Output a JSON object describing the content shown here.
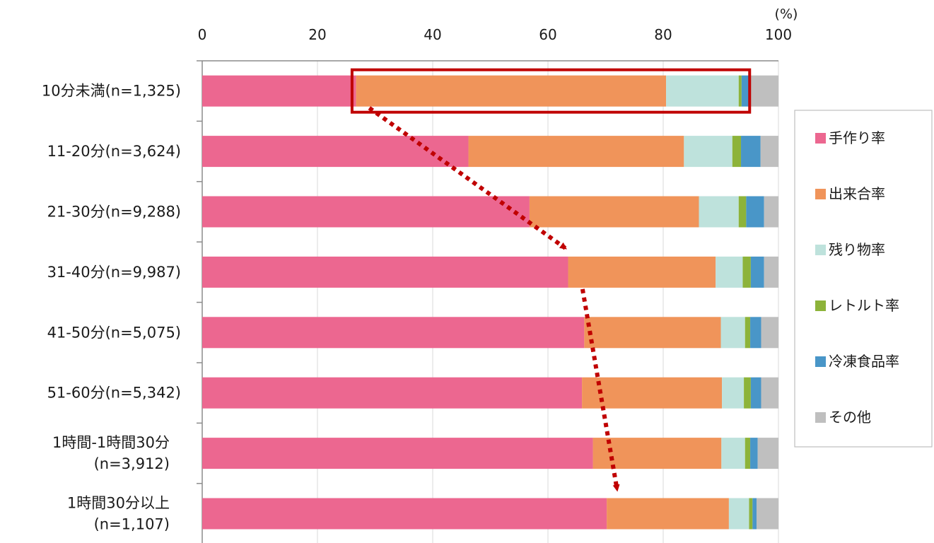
{
  "chart_data": {
    "type": "bar",
    "orientation": "horizontal",
    "stacked": true,
    "unit_label": "(%)",
    "xlim": [
      0,
      100
    ],
    "x_ticks": [
      0,
      20,
      40,
      60,
      80,
      100
    ],
    "grid": "vertical",
    "legend_position": "right",
    "categories": [
      "10分未満(n=1,325)",
      "11-20分(n=3,624)",
      "21-30分(n=9,288)",
      "31-40分(n=9,987)",
      "41-50分(n=5,075)",
      "51-60分(n=5,342)",
      "1時間-1時間30分\n(n=3,912)",
      "1時間30分以上\n(n=1,107)"
    ],
    "series": [
      {
        "name": "手作り率",
        "color": "#EC6790",
        "values": [
          26.7,
          46.2,
          56.8,
          63.5,
          66.3,
          65.9,
          67.8,
          70.2
        ]
      },
      {
        "name": "出来合率",
        "color": "#F0945A",
        "values": [
          53.8,
          37.4,
          29.4,
          25.6,
          23.7,
          24.3,
          22.3,
          21.2
        ]
      },
      {
        "name": "残り物率",
        "color": "#BEE2DC",
        "values": [
          12.6,
          8.4,
          6.9,
          4.7,
          4.2,
          3.8,
          4.1,
          3.5
        ]
      },
      {
        "name": "レトルト率",
        "color": "#8DB33A",
        "values": [
          0.5,
          1.5,
          1.3,
          1.4,
          0.9,
          1.2,
          0.9,
          0.6
        ]
      },
      {
        "name": "冷凍食品率",
        "color": "#4996C8",
        "values": [
          1.3,
          3.4,
          3.1,
          2.3,
          1.9,
          1.8,
          1.3,
          0.7
        ]
      },
      {
        "name": "その他",
        "color": "#BFBFBF",
        "values": [
          5.1,
          3.1,
          2.5,
          2.5,
          3.0,
          3.0,
          3.6,
          3.8
        ]
      }
    ],
    "annotations": {
      "highlight_box": {
        "row": 0,
        "x_range": [
          26,
          95
        ],
        "color": "#C00000"
      },
      "arrows": [
        {
          "from": {
            "row": 0,
            "x": 29
          },
          "to": {
            "row": 3,
            "x": 63
          },
          "color": "#C00000",
          "style": "dotted"
        },
        {
          "from": {
            "row": 3,
            "x": 66
          },
          "to": {
            "row": 7,
            "x": 72
          },
          "color": "#C00000",
          "style": "dotted"
        }
      ]
    }
  }
}
